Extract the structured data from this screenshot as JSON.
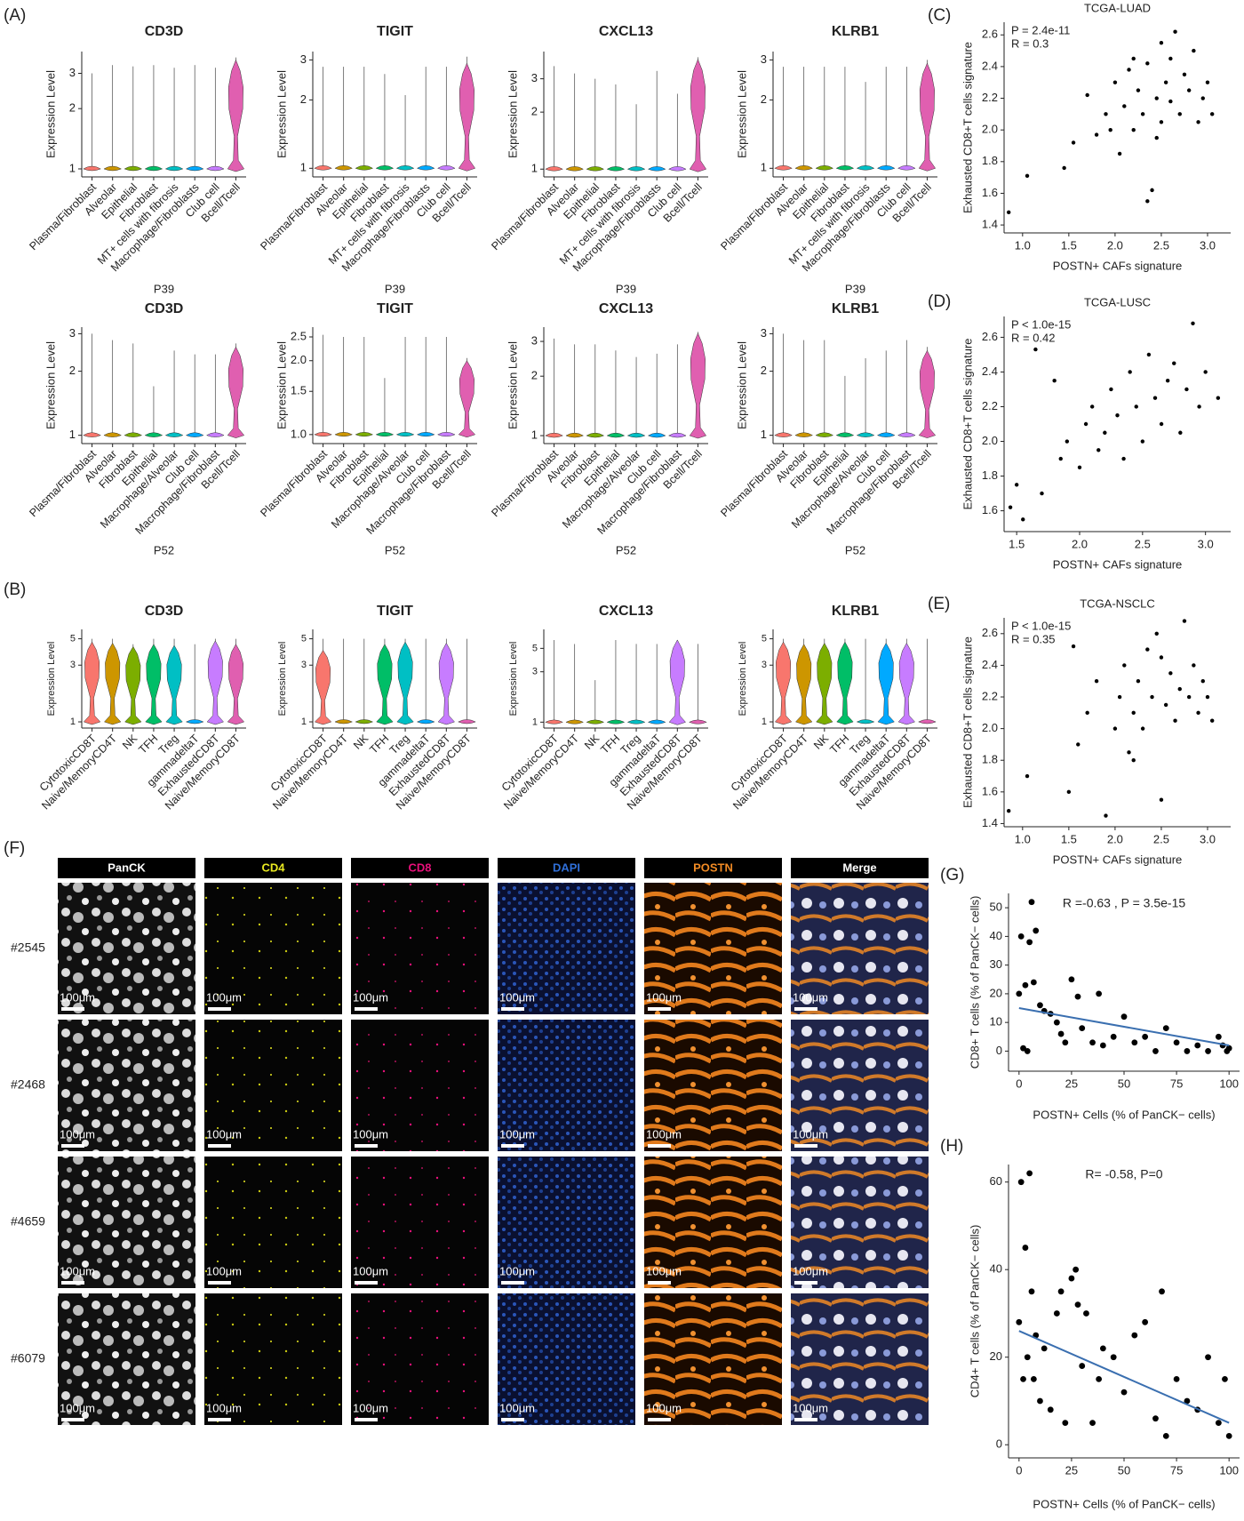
{
  "panel_labels": {
    "A": "(A)",
    "B": "(B)",
    "C": "(C)",
    "D": "(D)",
    "E": "(E)",
    "F": "(F)",
    "G": "(G)",
    "H": "(H)"
  },
  "panel_f": {
    "columns": [
      "PanCK",
      "CD4",
      "CD8",
      "DAPI",
      "POSTN",
      "Merge"
    ],
    "column_colors": [
      "#ffffff",
      "#e8e820",
      "#e8107a",
      "#2f6fd8",
      "#f08a24",
      "#ffffff"
    ],
    "rows": [
      "#2545",
      "#2468",
      "#4659",
      "#6079"
    ],
    "scale_bar": "100μm"
  },
  "chart_data": [
    {
      "type": "violin",
      "title": "CD3D",
      "ylabel": "Expression Level",
      "xlabel": "P39",
      "log": true,
      "ylim": [
        0.95,
        3.7
      ],
      "yticks": [
        1,
        2,
        3
      ],
      "categories": [
        "Plasma/Fibroblast",
        "Alveolar",
        "Epithelial",
        "Fibroblast",
        "MT+ cells with fibrosis",
        "Macrophage/Fibroblasts",
        "Club cell",
        "Bcell/Tcell"
      ],
      "colors": [
        "#F8766D",
        "#CD9600",
        "#7CAE00",
        "#00BE67",
        "#00BFC4",
        "#00A9FF",
        "#C77CFF",
        "#E05FB0"
      ],
      "values": [
        3.0,
        3.3,
        3.25,
        3.3,
        3.2,
        3.3,
        3.2,
        3.6
      ],
      "body": [
        1.02,
        1.02,
        1.02,
        1.02,
        1.02,
        1.02,
        1.02,
        3.5
      ]
    },
    {
      "type": "violin",
      "title": "TIGIT",
      "ylabel": "Expression Level",
      "xlabel": "P39",
      "log": true,
      "ylim": [
        0.95,
        3.15
      ],
      "yticks": [
        1,
        2,
        3
      ],
      "categories": [
        "Plasma/Fibroblast",
        "Alveolar",
        "Epithelial",
        "Fibroblast",
        "MT+ cells with fibrosis",
        "Macrophage/Fibroblasts",
        "Club cell",
        "Bcell/Tcell"
      ],
      "colors": [
        "#F8766D",
        "#CD9600",
        "#7CAE00",
        "#00BE67",
        "#00BFC4",
        "#00A9FF",
        "#C77CFF",
        "#E05FB0"
      ],
      "values": [
        2.8,
        2.8,
        2.8,
        2.6,
        2.1,
        2.8,
        2.8,
        3.1
      ],
      "body": [
        1.02,
        1.02,
        1.02,
        1.02,
        1.02,
        1.02,
        1.02,
        2.9
      ]
    },
    {
      "type": "violin",
      "title": "CXCL13",
      "ylabel": "Expression Level",
      "xlabel": "P39",
      "log": true,
      "ylim": [
        0.95,
        4.0
      ],
      "yticks": [
        1,
        2,
        3
      ],
      "categories": [
        "Plasma/Fibroblast",
        "Alveolar",
        "Epithelial",
        "Fibroblast",
        "MT+ cells with fibrosis",
        "Macrophage/Fibroblasts",
        "Club cell",
        "Bcell/Tcell"
      ],
      "colors": [
        "#F8766D",
        "#CD9600",
        "#7CAE00",
        "#00BE67",
        "#00BFC4",
        "#00A9FF",
        "#C77CFF",
        "#E05FB0"
      ],
      "values": [
        3.5,
        3.2,
        3.0,
        2.8,
        2.2,
        3.3,
        2.5,
        3.9
      ],
      "body": [
        1.02,
        1.02,
        1.02,
        1.02,
        1.02,
        1.02,
        1.02,
        3.8
      ]
    },
    {
      "type": "violin",
      "title": "KLRB1",
      "ylabel": "Expression Level",
      "xlabel": "P39",
      "log": true,
      "ylim": [
        0.95,
        3.15
      ],
      "yticks": [
        1,
        2,
        3
      ],
      "categories": [
        "Plasma/Fibroblast",
        "Alveolar",
        "Epithelial",
        "Fibroblast",
        "MT+ cells with fibrosis",
        "Macrophage/Fibroblasts",
        "Club cell",
        "Bcell/Tcell"
      ],
      "colors": [
        "#F8766D",
        "#CD9600",
        "#7CAE00",
        "#00BE67",
        "#00BFC4",
        "#00A9FF",
        "#C77CFF",
        "#E05FB0"
      ],
      "values": [
        2.8,
        2.8,
        2.8,
        2.8,
        2.4,
        2.8,
        2.8,
        3.0
      ],
      "body": [
        1.02,
        1.02,
        1.02,
        1.02,
        1.02,
        1.02,
        1.02,
        2.9
      ]
    },
    {
      "type": "violin",
      "title": "CD3D",
      "ylabel": "Expression Level",
      "xlabel": "P52",
      "log": true,
      "ylim": [
        0.95,
        3.1
      ],
      "yticks": [
        1,
        2,
        3
      ],
      "categories": [
        "Plasma/Fibroblast",
        "Alveolar",
        "Fibroblast",
        "Epithelial",
        "Macrophage/Alveolar",
        "Club cell",
        "Macrophage/Fibroblast",
        "Bcell/Tcell"
      ],
      "colors": [
        "#F8766D",
        "#CD9600",
        "#7CAE00",
        "#00BE67",
        "#00BFC4",
        "#00A9FF",
        "#C77CFF",
        "#E05FB0"
      ],
      "values": [
        3.0,
        2.8,
        2.7,
        1.7,
        2.5,
        2.4,
        2.4,
        2.7
      ],
      "body": [
        1.02,
        1.02,
        1.02,
        1.02,
        1.02,
        1.02,
        1.02,
        2.6
      ]
    },
    {
      "type": "violin",
      "title": "TIGIT",
      "ylabel": "Expression Level",
      "xlabel": "P52",
      "log": true,
      "ylim": [
        0.95,
        2.65
      ],
      "yticks": [
        {
          "value": 1,
          "label": "1.0"
        },
        1.5,
        {
          "value": 2,
          "label": "2.0"
        },
        2.5
      ],
      "categories": [
        "Plasma/Fibroblast",
        "Alveolar",
        "Fibroblast",
        "Epithelial",
        "Macrophage/Alveolar",
        "Club cell",
        "Macrophage/Fibroblast",
        "Bcell/Tcell"
      ],
      "colors": [
        "#F8766D",
        "#CD9600",
        "#7CAE00",
        "#00BE67",
        "#00BFC4",
        "#00A9FF",
        "#C77CFF",
        "#E05FB0"
      ],
      "values": [
        2.55,
        2.5,
        2.5,
        1.7,
        2.5,
        2.5,
        2.5,
        2.05
      ],
      "body": [
        1.01,
        1.01,
        1.01,
        1.01,
        1.01,
        1.01,
        1.01,
        2.0
      ]
    },
    {
      "type": "violin",
      "title": "CXCL13",
      "ylabel": "Expression Level",
      "xlabel": "P52",
      "log": true,
      "ylim": [
        0.95,
        3.4
      ],
      "yticks": [
        1,
        2,
        3
      ],
      "categories": [
        "Plasma/Fibroblast",
        "Alveolar",
        "Fibroblast",
        "Epithelial",
        "Macrophage/Alveolar",
        "Club cell",
        "Macrophage/Fibroblast",
        "Bcell/Tcell"
      ],
      "colors": [
        "#F8766D",
        "#CD9600",
        "#7CAE00",
        "#00BE67",
        "#00BFC4",
        "#00A9FF",
        "#C77CFF",
        "#E05FB0"
      ],
      "values": [
        3.1,
        2.9,
        2.9,
        2.7,
        2.5,
        2.6,
        2.9,
        3.35
      ],
      "body": [
        1.02,
        1.02,
        1.02,
        1.02,
        1.02,
        1.02,
        1.02,
        3.3
      ]
    },
    {
      "type": "violin",
      "title": "KLRB1",
      "ylabel": "Expression Level",
      "xlabel": "P52",
      "log": true,
      "ylim": [
        0.95,
        3.1
      ],
      "yticks": [
        1,
        2,
        3
      ],
      "categories": [
        "Plasma/Fibroblast",
        "Alveolar",
        "Fibroblast",
        "Epithelial",
        "Macrophage/Alveolar",
        "Club cell",
        "Macrophage/Fibroblast",
        "Bcell/Tcell"
      ],
      "colors": [
        "#F8766D",
        "#CD9600",
        "#7CAE00",
        "#00BE67",
        "#00BFC4",
        "#00A9FF",
        "#C77CFF",
        "#E05FB0"
      ],
      "values": [
        3.0,
        2.8,
        2.8,
        1.9,
        2.3,
        2.5,
        2.8,
        2.6
      ],
      "body": [
        1.02,
        1.02,
        1.02,
        1.02,
        1.02,
        1.02,
        1.02,
        2.5
      ]
    },
    {
      "type": "violin",
      "title": "CD3D",
      "ylabel": "Expression Level",
      "log": true,
      "ylim": [
        0.95,
        5.6
      ],
      "yticks": [
        1,
        3,
        5
      ],
      "categories": [
        "CytotoxicCD8T",
        "Naive/MemoryCD4T",
        "NK",
        "TFH",
        "Treg",
        "gammadeltaT",
        "ExhaustedCD8T",
        "Naive/MemoryCD8T"
      ],
      "colors": [
        "#F8766D",
        "#CD9600",
        "#7CAE00",
        "#00BE67",
        "#00BFC4",
        "#00A9FF",
        "#C77CFF",
        "#E05FB0"
      ],
      "values": [
        5.0,
        5.0,
        4.5,
        5.0,
        5.0,
        4.5,
        5.0,
        5.0
      ],
      "body": [
        4.7,
        4.6,
        4.3,
        4.5,
        4.4,
        1.02,
        4.8,
        4.5
      ]
    },
    {
      "type": "violin",
      "title": "TIGIT",
      "ylabel": "Expression Level",
      "log": true,
      "ylim": [
        0.95,
        5.6
      ],
      "yticks": [
        1,
        3,
        5
      ],
      "categories": [
        "CytotoxicCD8T",
        "Naive/MemoryCD4T",
        "NK",
        "TFH",
        "Treg",
        "gammadeltaT",
        "ExhaustedCD8T",
        "Naive/MemoryCD8T"
      ],
      "colors": [
        "#F8766D",
        "#CD9600",
        "#7CAE00",
        "#00BE67",
        "#00BFC4",
        "#00A9FF",
        "#C77CFF",
        "#E05FB0"
      ],
      "values": [
        5.0,
        5.0,
        5.0,
        5.0,
        5.0,
        5.0,
        5.0,
        5.0
      ],
      "body": [
        4.0,
        1.02,
        1.02,
        4.5,
        4.7,
        1.02,
        4.6,
        1.02
      ]
    },
    {
      "type": "violin",
      "title": "CXCL13",
      "ylabel": "Expression Level",
      "log": true,
      "ylim": [
        0.95,
        7.0
      ],
      "yticks": [
        1,
        3,
        5
      ],
      "categories": [
        "CytotoxicCD8T",
        "Naive/MemoryCD4T",
        "NK",
        "TFH",
        "Treg",
        "gammadeltaT",
        "ExhaustedCD8T",
        "Naive/MemoryCD8T"
      ],
      "colors": [
        "#F8766D",
        "#CD9600",
        "#7CAE00",
        "#00BE67",
        "#00BFC4",
        "#00A9FF",
        "#C77CFF",
        "#E05FB0"
      ],
      "values": [
        6.0,
        5.5,
        2.5,
        6.0,
        5.5,
        5.5,
        6.0,
        5.5
      ],
      "body": [
        1.02,
        1.02,
        1.02,
        1.02,
        1.02,
        1.02,
        6.0,
        1.02
      ]
    },
    {
      "type": "violin",
      "title": "KLRB1",
      "ylabel": "Expression Level",
      "log": true,
      "ylim": [
        0.95,
        5.6
      ],
      "yticks": [
        1,
        3,
        5
      ],
      "categories": [
        "CytotoxicCD8T",
        "Naive/MemoryCD4T",
        "NK",
        "TFH",
        "Treg",
        "gammadeltaT",
        "ExhaustedCD8T",
        "Naive/MemoryCD8T"
      ],
      "colors": [
        "#F8766D",
        "#CD9600",
        "#7CAE00",
        "#00BE67",
        "#00BFC4",
        "#00A9FF",
        "#C77CFF",
        "#E05FB0"
      ],
      "values": [
        5.0,
        5.0,
        5.0,
        5.0,
        5.0,
        5.0,
        5.0,
        5.0
      ],
      "body": [
        4.7,
        4.5,
        4.6,
        4.7,
        1.02,
        4.6,
        4.6,
        1.02
      ]
    },
    {
      "type": "scatter",
      "title": "TCGA-LUAD",
      "xlabel": "POSTN+ CAFs signature",
      "ylabel": "Exhausted CD8+T cells signature",
      "color": "#000000",
      "annotations": [
        "P = 2.4e-11",
        "R = 0.3"
      ],
      "xlim": [
        0.8,
        3.25
      ],
      "xticks": [
        {
          "value": 1,
          "label": "1.0"
        },
        1.5,
        {
          "value": 2,
          "label": "2.0"
        },
        2.5,
        {
          "value": 3,
          "label": "3.0"
        }
      ],
      "ylim": [
        1.35,
        2.68
      ],
      "yticks": [
        1.4,
        1.6,
        1.8,
        {
          "value": 2,
          "label": "2.0"
        },
        2.2,
        2.4,
        2.6
      ],
      "x": [
        0.85,
        1.05,
        1.45,
        1.55,
        1.7,
        1.8,
        1.9,
        2.0,
        2.05,
        2.1,
        2.15,
        2.2,
        2.25,
        2.3,
        2.35,
        2.4,
        2.45,
        2.5,
        2.5,
        2.55,
        2.6,
        2.6,
        2.65,
        2.7,
        2.75,
        2.8,
        2.85,
        2.9,
        2.95,
        3.0,
        3.05,
        2.35,
        2.45,
        2.2,
        1.95
      ],
      "y": [
        1.48,
        1.71,
        1.76,
        1.92,
        2.22,
        1.97,
        2.1,
        2.3,
        1.85,
        2.15,
        2.38,
        2.0,
        2.25,
        2.1,
        2.42,
        1.62,
        2.2,
        2.55,
        2.05,
        2.3,
        2.18,
        2.45,
        2.62,
        2.1,
        2.35,
        2.25,
        2.5,
        2.05,
        2.2,
        2.3,
        2.1,
        1.55,
        1.95,
        2.45,
        2.0
      ]
    },
    {
      "type": "scatter",
      "title": "TCGA-LUSC",
      "xlabel": "POSTN+ CAFs signature",
      "ylabel": "Exhausted CD8+T cells signature",
      "color": "#000000",
      "annotations": [
        "P < 1.0e-15",
        "R = 0.42"
      ],
      "xlim": [
        1.4,
        3.2
      ],
      "xticks": [
        1.5,
        {
          "value": 2,
          "label": "2.0"
        },
        2.5,
        {
          "value": 3,
          "label": "3.0"
        }
      ],
      "ylim": [
        1.48,
        2.72
      ],
      "yticks": [
        1.6,
        1.8,
        {
          "value": 2,
          "label": "2.0"
        },
        2.2,
        2.4,
        2.6
      ],
      "x": [
        1.45,
        1.5,
        1.55,
        1.65,
        1.7,
        1.8,
        1.85,
        1.9,
        2.0,
        2.05,
        2.1,
        2.15,
        2.2,
        2.25,
        2.3,
        2.35,
        2.4,
        2.45,
        2.5,
        2.55,
        2.6,
        2.65,
        2.7,
        2.75,
        2.8,
        2.85,
        2.9,
        2.95,
        3.0,
        3.1
      ],
      "y": [
        1.62,
        1.75,
        1.55,
        2.53,
        1.7,
        2.35,
        1.9,
        2.0,
        1.85,
        2.1,
        2.2,
        1.95,
        2.05,
        2.3,
        2.15,
        1.9,
        2.4,
        2.2,
        2.0,
        2.5,
        2.25,
        2.1,
        2.35,
        2.45,
        2.05,
        2.3,
        2.68,
        2.2,
        2.4,
        2.25
      ]
    },
    {
      "type": "scatter",
      "title": "TCGA-NSCLC",
      "xlabel": "POSTN+ CAFs signature",
      "ylabel": "Exhausted CD8+T cells signature",
      "color": "#000000",
      "annotations": [
        "P < 1.0e-15",
        "R = 0.35"
      ],
      "xlim": [
        0.8,
        3.25
      ],
      "xticks": [
        {
          "value": 1,
          "label": "1.0"
        },
        1.5,
        {
          "value": 2,
          "label": "2.0"
        },
        2.5,
        {
          "value": 3,
          "label": "3.0"
        }
      ],
      "ylim": [
        1.38,
        2.7
      ],
      "yticks": [
        1.4,
        1.6,
        1.8,
        {
          "value": 2,
          "label": "2.0"
        },
        2.2,
        2.4,
        2.6
      ],
      "x": [
        0.85,
        1.05,
        1.5,
        1.55,
        1.6,
        1.7,
        1.8,
        1.9,
        2.0,
        2.05,
        2.1,
        2.15,
        2.2,
        2.25,
        2.3,
        2.35,
        2.4,
        2.45,
        2.5,
        2.55,
        2.6,
        2.65,
        2.7,
        2.75,
        2.8,
        2.85,
        2.9,
        2.95,
        3.0,
        3.05,
        2.5,
        2.2
      ],
      "y": [
        1.48,
        1.7,
        1.6,
        2.52,
        1.9,
        2.1,
        2.3,
        1.45,
        2.0,
        2.2,
        2.4,
        1.85,
        2.1,
        2.3,
        2.0,
        2.5,
        2.2,
        2.6,
        1.55,
        2.15,
        2.35,
        2.05,
        2.25,
        2.68,
        2.2,
        2.4,
        2.1,
        2.3,
        2.2,
        2.05,
        2.45,
        1.8
      ]
    },
    {
      "type": "scatter",
      "xlabel": "POSTN+ Cells (% of PanCK− cells)",
      "ylabel": "CD8+ T cells (% of PanCK− cells)",
      "color": "#000000",
      "annotations": [
        "R =-0.63 , P = 3.5e-15"
      ],
      "fit_color": "#3a6fb0",
      "xlim": [
        -5,
        105
      ],
      "xticks": [
        0,
        25,
        50,
        75,
        100
      ],
      "ylim": [
        -7,
        55
      ],
      "yticks": [
        0,
        10,
        20,
        30,
        40,
        50
      ],
      "x": [
        0,
        1,
        2,
        3,
        4,
        5,
        6,
        7,
        8,
        10,
        12,
        15,
        18,
        20,
        22,
        25,
        28,
        30,
        35,
        38,
        40,
        45,
        50,
        55,
        60,
        65,
        70,
        75,
        80,
        85,
        90,
        95,
        97,
        99,
        100
      ],
      "y": [
        20,
        40,
        1,
        23,
        0,
        38,
        52,
        24,
        42,
        16,
        14,
        13,
        10,
        6,
        3,
        25,
        19,
        8,
        3,
        20,
        2,
        5,
        12,
        3,
        5,
        0,
        8,
        3,
        0,
        2,
        0,
        5,
        2,
        0,
        1
      ],
      "fit": {
        "x": [
          0,
          100
        ],
        "y": [
          15,
          2
        ]
      }
    },
    {
      "type": "scatter",
      "xlabel": "POSTN+ Cells (% of PanCK− cells)",
      "ylabel": "CD4+ T cells (% of PanCK− cells)",
      "color": "#000000",
      "annotations": [
        "R= -0.58, P=0"
      ],
      "fit_color": "#3a6fb0",
      "xlim": [
        -5,
        105
      ],
      "xticks": [
        0,
        25,
        50,
        75,
        100
      ],
      "ylim": [
        -3,
        64
      ],
      "yticks": [
        0,
        20,
        40,
        60
      ],
      "x": [
        0,
        1,
        2,
        3,
        4,
        5,
        6,
        7,
        8,
        10,
        12,
        15,
        18,
        20,
        22,
        25,
        27,
        28,
        30,
        32,
        35,
        38,
        40,
        45,
        50,
        55,
        60,
        65,
        68,
        70,
        75,
        80,
        85,
        90,
        95,
        98,
        100
      ],
      "y": [
        28,
        60,
        15,
        45,
        20,
        62,
        35,
        15,
        25,
        10,
        22,
        8,
        30,
        35,
        5,
        38,
        40,
        32,
        18,
        30,
        5,
        15,
        22,
        20,
        12,
        25,
        28,
        6,
        35,
        2,
        15,
        10,
        8,
        20,
        5,
        15,
        2
      ],
      "fit": {
        "x": [
          0,
          100
        ],
        "y": [
          26,
          5
        ]
      }
    }
  ]
}
